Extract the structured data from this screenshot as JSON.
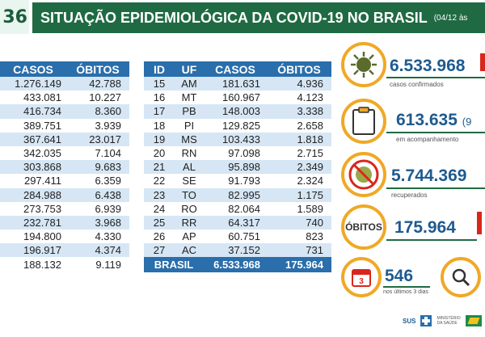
{
  "header": {
    "badge": "36",
    "title": "SITUAÇÃO EPIDEMIOLÓGICA DA COVID-19 NO BRASIL",
    "date": "(04/12 às"
  },
  "left_table": {
    "headers": [
      "CASOS",
      "ÓBITOS"
    ],
    "rows": [
      [
        "1.276.149",
        "42.788"
      ],
      [
        "433.081",
        "10.227"
      ],
      [
        "416.734",
        "8.360"
      ],
      [
        "389.751",
        "3.939"
      ],
      [
        "367.641",
        "23.017"
      ],
      [
        "342.035",
        "7.104"
      ],
      [
        "303.868",
        "9.683"
      ],
      [
        "297.411",
        "6.359"
      ],
      [
        "284.988",
        "6.438"
      ],
      [
        "273.753",
        "6.939"
      ],
      [
        "232.781",
        "3.968"
      ],
      [
        "194.800",
        "4.330"
      ],
      [
        "196.917",
        "4.374"
      ],
      [
        "188.132",
        "9.119"
      ]
    ]
  },
  "right_table": {
    "headers": [
      "ID",
      "UF",
      "CASOS",
      "ÓBITOS"
    ],
    "rows": [
      [
        "15",
        "AM",
        "181.631",
        "4.936"
      ],
      [
        "16",
        "MT",
        "160.967",
        "4.123"
      ],
      [
        "17",
        "PB",
        "148.003",
        "3.338"
      ],
      [
        "18",
        "PI",
        "129.825",
        "2.658"
      ],
      [
        "19",
        "MS",
        "103.433",
        "1.818"
      ],
      [
        "20",
        "RN",
        "97.098",
        "2.715"
      ],
      [
        "21",
        "AL",
        "95.898",
        "2.349"
      ],
      [
        "22",
        "SE",
        "91.793",
        "2.324"
      ],
      [
        "23",
        "TO",
        "82.995",
        "1.175"
      ],
      [
        "24",
        "RO",
        "82.064",
        "1.589"
      ],
      [
        "25",
        "RR",
        "64.317",
        "740"
      ],
      [
        "26",
        "AP",
        "60.751",
        "823"
      ],
      [
        "27",
        "AC",
        "37.152",
        "731"
      ]
    ],
    "total": {
      "label": "BRASIL",
      "casos": "6.533.968",
      "obitos": "175.964"
    }
  },
  "stats": {
    "confirmados": {
      "value": "6.533.968",
      "caption": "casos confirmados",
      "icon": "virus-icon"
    },
    "acompanhamento": {
      "value": "613.635",
      "suffix": "(9",
      "caption": "em acompanhamento",
      "icon": "clipboard-icon"
    },
    "recuperados": {
      "value": "5.744.369",
      "caption": "recuperados",
      "icon": "no-virus-icon"
    },
    "obitos": {
      "label": "ÓBITOS",
      "value": "175.964"
    },
    "ultimos": {
      "value": "546",
      "caption": "nos últimos 3 dias",
      "calendar_number": "3"
    }
  },
  "footer": {
    "sus": "SUS",
    "ministerio": "MINISTÉRIO DA SAÚDE"
  },
  "colors": {
    "header_green": "#1f6a43",
    "table_blue": "#2a6eab",
    "row_stripe": "#d6e6f4",
    "accent_orange": "#f0a826",
    "value_blue": "#1e5a8f",
    "arrow_red": "#d9261c"
  }
}
